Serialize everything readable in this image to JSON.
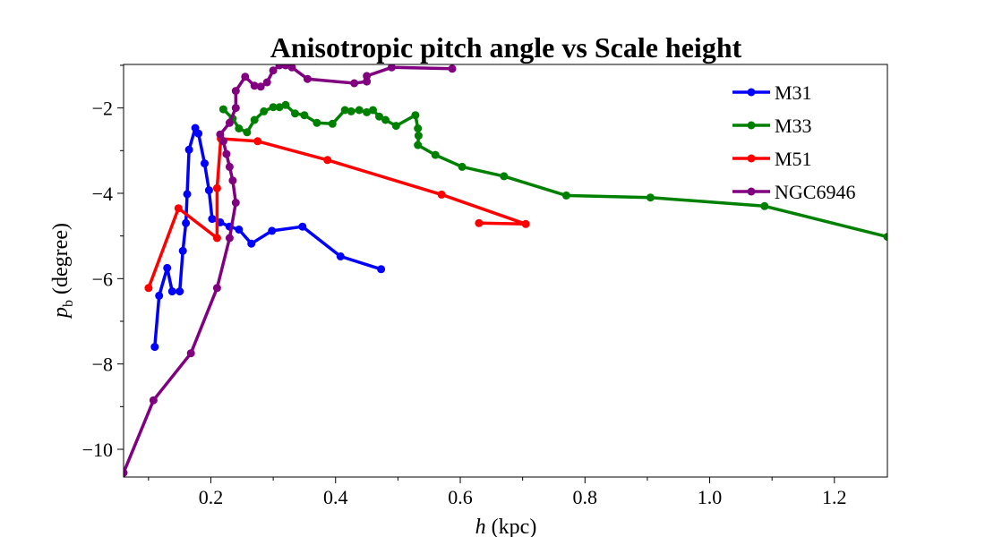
{
  "chart_data": {
    "type": "line",
    "title": "Anisotropic pitch angle vs Scale height",
    "xlabel_var": "h",
    "xlabel_unit": " (kpc)",
    "ylabel_var": "p",
    "ylabel_sub": "b",
    "ylabel_unit": " (degree)",
    "xlim": [
      0.06,
      1.285
    ],
    "ylim": [
      -10.65,
      -0.98
    ],
    "x_ticks": [
      0.2,
      0.4,
      0.6,
      0.8,
      1.0,
      1.2
    ],
    "x_tick_labels": [
      "0.2",
      "0.4",
      "0.6",
      "0.8",
      "1.0",
      "1.2"
    ],
    "x_minor_ticks": [
      0.1,
      0.3,
      0.5,
      0.7,
      0.9,
      1.1
    ],
    "y_ticks": [
      -10,
      -8,
      -6,
      -4,
      -2
    ],
    "y_tick_labels": [
      "−10",
      "−8",
      "−6",
      "−4",
      "−2"
    ],
    "y_minor_ticks": [
      -9,
      -7,
      -5,
      -3,
      -1
    ],
    "grid": false,
    "legend_position": "top-right",
    "series": [
      {
        "name": "M31",
        "color": "#0000ff",
        "points": [
          [
            0.11,
            -7.6
          ],
          [
            0.117,
            -6.4
          ],
          [
            0.13,
            -5.75
          ],
          [
            0.138,
            -6.3
          ],
          [
            0.15,
            -6.3
          ],
          [
            0.155,
            -5.35
          ],
          [
            0.16,
            -4.7
          ],
          [
            0.162,
            -4.02
          ],
          [
            0.165,
            -2.98
          ],
          [
            0.175,
            -2.47
          ],
          [
            0.18,
            -2.6
          ],
          [
            0.19,
            -3.3
          ],
          [
            0.197,
            -3.93
          ],
          [
            0.202,
            -4.6
          ],
          [
            0.215,
            -4.68
          ],
          [
            0.23,
            -4.78
          ],
          [
            0.245,
            -4.85
          ],
          [
            0.265,
            -5.18
          ],
          [
            0.298,
            -4.88
          ],
          [
            0.347,
            -4.78
          ],
          [
            0.408,
            -5.48
          ],
          [
            0.473,
            -5.78
          ]
        ]
      },
      {
        "name": "M33",
        "color": "#008000",
        "points": [
          [
            0.22,
            -2.03
          ],
          [
            0.235,
            -2.25
          ],
          [
            0.245,
            -2.48
          ],
          [
            0.258,
            -2.57
          ],
          [
            0.27,
            -2.28
          ],
          [
            0.285,
            -2.08
          ],
          [
            0.3,
            -1.98
          ],
          [
            0.31,
            -1.98
          ],
          [
            0.32,
            -1.93
          ],
          [
            0.335,
            -2.13
          ],
          [
            0.35,
            -2.17
          ],
          [
            0.37,
            -2.35
          ],
          [
            0.395,
            -2.37
          ],
          [
            0.415,
            -2.05
          ],
          [
            0.425,
            -2.08
          ],
          [
            0.438,
            -2.05
          ],
          [
            0.45,
            -2.1
          ],
          [
            0.46,
            -2.05
          ],
          [
            0.47,
            -2.2
          ],
          [
            0.48,
            -2.28
          ],
          [
            0.497,
            -2.42
          ],
          [
            0.528,
            -2.17
          ],
          [
            0.532,
            -2.48
          ],
          [
            0.533,
            -2.65
          ],
          [
            0.532,
            -2.87
          ],
          [
            0.56,
            -3.1
          ],
          [
            0.603,
            -3.38
          ],
          [
            0.67,
            -3.6
          ],
          [
            0.77,
            -4.05
          ],
          [
            0.905,
            -4.1
          ],
          [
            1.088,
            -4.3
          ],
          [
            1.285,
            -5.02
          ]
        ]
      },
      {
        "name": "M51",
        "color": "#ff0000",
        "points": [
          [
            0.1,
            -6.22
          ],
          [
            0.148,
            -4.35
          ],
          [
            0.21,
            -5.05
          ],
          [
            0.21,
            -3.88
          ],
          [
            0.216,
            -2.72
          ],
          [
            0.275,
            -2.78
          ],
          [
            0.387,
            -3.22
          ],
          [
            0.57,
            -4.03
          ],
          [
            0.705,
            -4.72
          ],
          [
            0.63,
            -4.7
          ]
        ]
      },
      {
        "name": "NGC6946",
        "color": "#800080",
        "points": [
          [
            0.06,
            -10.55
          ],
          [
            0.108,
            -8.85
          ],
          [
            0.168,
            -7.75
          ],
          [
            0.21,
            -6.22
          ],
          [
            0.23,
            -5.05
          ],
          [
            0.24,
            -4.22
          ],
          [
            0.235,
            -3.7
          ],
          [
            0.23,
            -3.38
          ],
          [
            0.225,
            -3.08
          ],
          [
            0.22,
            -2.78
          ],
          [
            0.215,
            -2.62
          ],
          [
            0.23,
            -2.35
          ],
          [
            0.24,
            -2.0
          ],
          [
            0.24,
            -1.6
          ],
          [
            0.255,
            -1.27
          ],
          [
            0.27,
            -1.48
          ],
          [
            0.28,
            -1.5
          ],
          [
            0.29,
            -1.4
          ],
          [
            0.3,
            -1.12
          ],
          [
            0.31,
            -1.0
          ],
          [
            0.32,
            -1.0
          ],
          [
            0.33,
            -1.05
          ],
          [
            0.355,
            -1.32
          ],
          [
            0.43,
            -1.42
          ],
          [
            0.45,
            -1.38
          ],
          [
            0.45,
            -1.25
          ],
          [
            0.49,
            -1.05
          ],
          [
            0.587,
            -1.08
          ]
        ]
      }
    ]
  }
}
